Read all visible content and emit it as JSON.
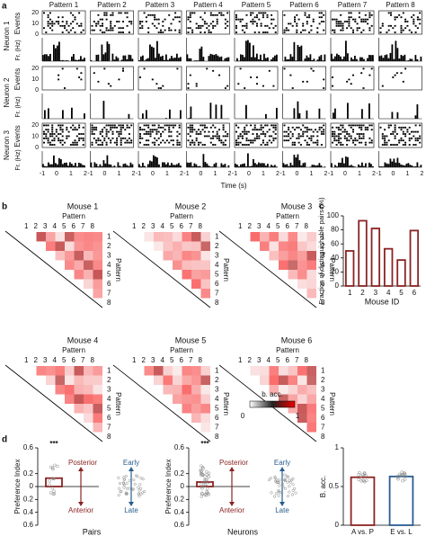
{
  "panel_labels": [
    "a",
    "b",
    "c",
    "d"
  ],
  "panel_a": {
    "patterns": [
      "Pattern 1",
      "Pattern 2",
      "Pattern 3",
      "Pattern 4",
      "Pattern 5",
      "Pattern 6",
      "Pattern 7",
      "Pattern 8"
    ],
    "neurons": [
      "Neuron 1",
      "Neuron 2",
      "Neuron 3"
    ],
    "events_label": "Events",
    "rate_label": "Fr. (Hz)",
    "events_ticks": [
      "20",
      "10",
      "0"
    ],
    "time_ticks": [
      "-1",
      "0",
      "1",
      "2"
    ],
    "x_label": "Time (s)"
  },
  "panel_b": {
    "mice": [
      "Mouse 1",
      "Mouse 2",
      "Mouse 3",
      "Mouse 4",
      "Mouse 5",
      "Mouse 6"
    ],
    "axis_label": "Pattern",
    "indices": [
      "1",
      "2",
      "3",
      "4",
      "5",
      "6",
      "7",
      "8"
    ],
    "colorbar": {
      "label": "b. acc.",
      "min": "0",
      "max": "1"
    }
  },
  "panel_d": {
    "annotations": [
      "Posterior",
      "Anterior",
      "Early",
      "Late"
    ]
  },
  "chart_data": [
    {
      "type": "bar",
      "y_label": "Fraction of distinguishable pairs (%)",
      "x_label": "Mouse ID",
      "categories": [
        "1",
        "2",
        "3",
        "4",
        "5",
        "6"
      ],
      "values": [
        50,
        93,
        82,
        53,
        37,
        79
      ],
      "color": "#8b2323",
      "ylim": [
        0,
        100
      ],
      "yticks": [
        0,
        20,
        40,
        60,
        80,
        100
      ]
    },
    {
      "type": "bar",
      "y_label": "Preference Index",
      "x_label": "Pairs",
      "values": [
        0.13
      ],
      "annotation": "***",
      "color": "#8b2323",
      "ylim": [
        -0.6,
        0.6
      ],
      "yticks": [
        {
          "value": 0.6,
          "label": "0.6"
        },
        {
          "value": 0.2,
          "label": "0.2"
        },
        {
          "value": 0,
          "label": "0"
        },
        {
          "value": -0.2,
          "label": "0.2"
        },
        {
          "value": -0.4,
          "label": "0.4"
        },
        {
          "value": -0.6,
          "label": "0.6"
        }
      ]
    },
    {
      "type": "bar",
      "y_label": "Preference Index",
      "x_label": "Neurons",
      "values": [
        0.07
      ],
      "annotation": "***",
      "color": "#8b2323",
      "ylim": [
        -0.6,
        0.6
      ],
      "yticks": [
        {
          "value": 0.6,
          "label": "0.6"
        },
        {
          "value": 0.2,
          "label": "0.2"
        },
        {
          "value": 0,
          "label": "0"
        },
        {
          "value": -0.2,
          "label": "0.2"
        },
        {
          "value": -0.4,
          "label": "0.4"
        },
        {
          "value": -0.6,
          "label": "0.6"
        }
      ]
    },
    {
      "type": "bar",
      "y_label": "B. acc.",
      "categories": [
        "A vs. P",
        "E vs. L"
      ],
      "values": [
        0.62,
        0.63
      ],
      "colors": [
        "#8b2323",
        "#2a5d8f"
      ],
      "ylim": [
        0,
        1
      ],
      "yticks": [
        0,
        0.5,
        1
      ]
    }
  ]
}
